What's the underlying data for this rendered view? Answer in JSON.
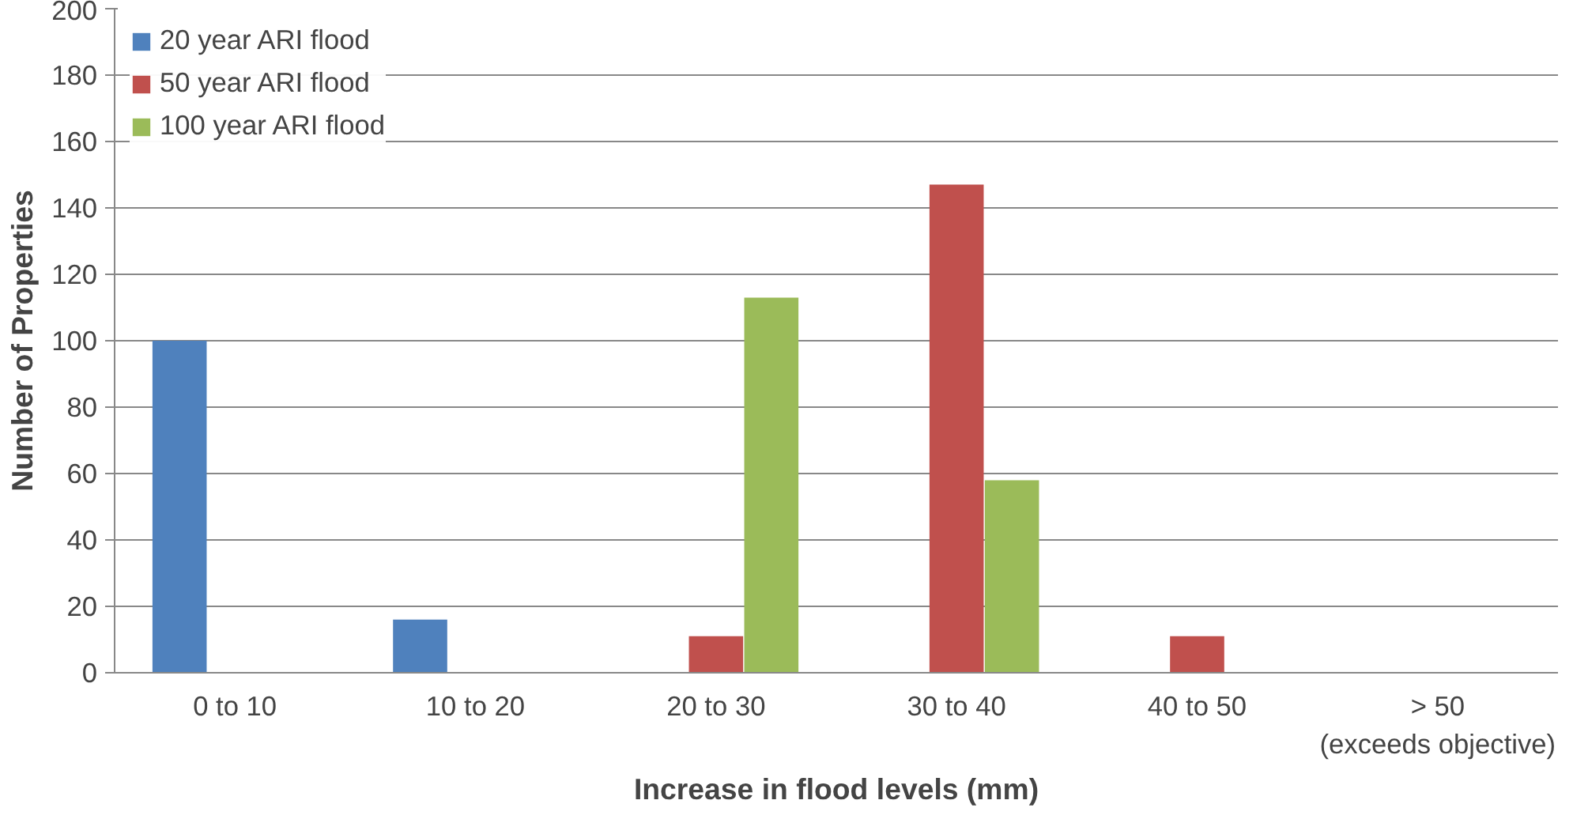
{
  "chart_data": {
    "type": "bar",
    "xlabel": "Increase in flood levels (mm)",
    "ylabel": "Number of Properties",
    "categories": [
      "0 to 10",
      "10 to 20",
      "20 to 30",
      "30 to 40",
      "40 to 50",
      "> 50\n(exceeds objective)"
    ],
    "series": [
      {
        "name": "20 year ARI flood",
        "color": "#4f81bd",
        "values": [
          100,
          16,
          0,
          0,
          0,
          0
        ]
      },
      {
        "name": "50 year ARI flood",
        "color": "#c0504d",
        "values": [
          0,
          0,
          11,
          147,
          11,
          0
        ]
      },
      {
        "name": "100 year ARI flood",
        "color": "#9bbb59",
        "values": [
          0,
          0,
          113,
          58,
          0,
          0
        ]
      }
    ],
    "ylim": [
      0,
      200
    ],
    "yticks": [
      0,
      20,
      40,
      60,
      80,
      100,
      120,
      140,
      160,
      180,
      200
    ],
    "grid": "y",
    "legend": "top left"
  }
}
